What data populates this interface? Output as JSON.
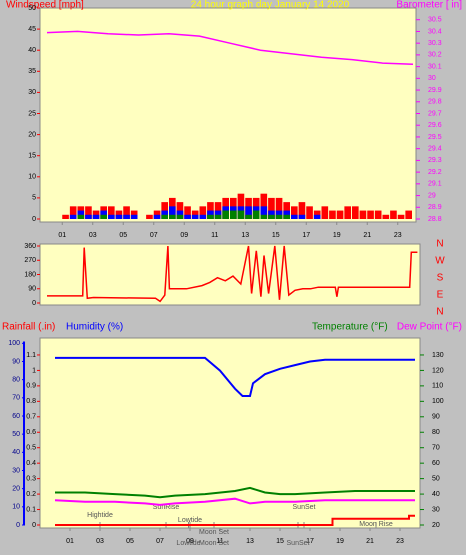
{
  "chart_data": [
    {
      "type": "bar",
      "title": "24 hour graph day   January 14 2020",
      "ylabel": "Windspeed [mph]",
      "y2label": "Barometer [ in]",
      "xlim": [
        0,
        24
      ],
      "xticks": [
        {
          "value": 1,
          "label": "01"
        },
        {
          "value": 3,
          "label": "03"
        },
        {
          "value": 5,
          "label": "05"
        },
        {
          "value": 7,
          "label": "07"
        },
        {
          "value": 9,
          "label": "09"
        },
        11,
        13,
        15,
        17,
        19,
        21,
        23
      ],
      "ylim": [
        0,
        50
      ],
      "yticks": [
        0,
        5,
        10,
        15,
        20,
        25,
        30,
        35,
        40,
        45,
        50
      ],
      "y2lim": [
        28.8,
        30.6
      ],
      "y2ticks": [
        28.8,
        28.9,
        29,
        29.1,
        29.2,
        29.3,
        29.4,
        29.5,
        29.6,
        29.7,
        29.8,
        29.9,
        30,
        30.1,
        30.2,
        30.3,
        30.4,
        30.5
      ],
      "x": [
        0,
        0.5,
        1,
        1.5,
        2,
        2.5,
        3,
        3.5,
        4,
        4.5,
        5,
        5.5,
        6,
        6.5,
        7,
        7.5,
        8,
        8.5,
        9,
        9.5,
        10,
        10.5,
        11,
        11.5,
        12,
        12.5,
        13,
        13.5,
        14,
        14.5,
        15,
        15.5,
        16,
        16.5,
        17,
        17.5,
        18,
        18.5,
        19,
        19.5,
        20,
        20.5,
        21,
        21.5,
        22,
        22.5,
        23,
        23.5
      ],
      "series": [
        {
          "color": "#ff0000",
          "values": [
            0,
            0,
            1,
            3,
            3,
            3,
            2,
            3,
            3,
            2,
            3,
            2,
            0,
            1,
            2,
            4,
            5,
            4,
            3,
            2,
            3,
            4,
            4,
            5,
            5,
            6,
            5,
            5,
            6,
            5,
            5,
            4,
            3,
            4,
            3,
            2,
            3,
            2,
            2,
            3,
            3,
            2,
            2,
            2,
            1,
            2,
            1,
            2
          ]
        },
        {
          "color": "#0000ff",
          "values": [
            0,
            0,
            0,
            1,
            2,
            1,
            1,
            2,
            1,
            1,
            1,
            1,
            0,
            0,
            1,
            2,
            3,
            2,
            1,
            1,
            1,
            2,
            2,
            3,
            3,
            3,
            3,
            3,
            3,
            2,
            2,
            2,
            1,
            1,
            0,
            1,
            0,
            0,
            0,
            0,
            0,
            0,
            0,
            0,
            0,
            0,
            0,
            0
          ]
        },
        {
          "color": "#008000",
          "values": [
            0,
            0,
            0,
            0,
            1,
            0,
            0,
            1,
            0,
            0,
            0,
            0,
            0,
            0,
            0,
            1,
            1,
            1,
            0,
            0,
            0,
            1,
            1,
            2,
            2,
            2,
            1,
            2,
            1,
            1,
            1,
            1,
            0,
            0,
            0,
            0,
            0,
            0,
            0,
            0,
            0,
            0,
            0,
            0,
            0,
            0,
            0,
            0
          ]
        }
      ],
      "line": {
        "color": "#ff00ff",
        "axis": "y2",
        "x": [
          0,
          2,
          4,
          6,
          8,
          10,
          12,
          14,
          16,
          18,
          20,
          22,
          24
        ],
        "values": [
          30.39,
          30.4,
          30.38,
          30.37,
          30.38,
          30.36,
          30.3,
          30.24,
          30.21,
          30.18,
          30.16,
          30.13,
          30.12
        ]
      }
    },
    {
      "type": "line",
      "xlim": [
        0,
        24
      ],
      "ylim": [
        0,
        360
      ],
      "yticks": [
        0,
        90,
        180,
        270,
        360
      ],
      "compass": [
        "N",
        "W",
        "S",
        "E",
        "N"
      ],
      "series": [
        {
          "color": "#ff0000",
          "x": [
            0,
            2.3,
            2.4,
            2.6,
            3,
            7,
            7.3,
            7.6,
            7.8,
            7.9,
            9,
            10,
            10.5,
            11,
            11.5,
            12,
            12.5,
            13,
            13.2,
            13.5,
            13.8,
            14,
            14.3,
            14.7,
            15,
            15.3,
            15.6,
            16,
            16.5,
            17,
            17.5,
            18,
            18.6,
            18.7,
            18.8,
            20,
            23.4,
            23.5,
            23.9
          ],
          "values": [
            45,
            45,
            350,
            30,
            35,
            30,
            10,
            50,
            360,
            90,
            90,
            110,
            130,
            160,
            140,
            170,
            120,
            360,
            60,
            330,
            40,
            300,
            60,
            360,
            20,
            360,
            50,
            80,
            90,
            90,
            100,
            100,
            100,
            40,
            100,
            100,
            100,
            320,
            320
          ]
        }
      ]
    },
    {
      "type": "line",
      "ylabel": "Rainfall (.in)",
      "hlabel": "Humidity (%)",
      "y2label": "Temperature (°F)",
      "y3label": "Dew Point (°F)",
      "xlim": [
        0,
        24
      ],
      "xticks": [
        {
          "value": 1,
          "label": "01"
        },
        {
          "value": 3,
          "label": "03"
        },
        {
          "value": 5,
          "label": "05"
        },
        {
          "value": 7,
          "label": "07"
        },
        {
          "value": 9,
          "label": "09"
        },
        11,
        13,
        15,
        17,
        19,
        21,
        23
      ],
      "ylim": [
        0,
        1.2
      ],
      "yticks": [
        0,
        0.1,
        0.2,
        0.3,
        0.4,
        0.5,
        0.6,
        0.7,
        0.8,
        0.9,
        1,
        1.1
      ],
      "hlim": [
        0,
        101
      ],
      "hticks": [
        0,
        10,
        20,
        30,
        40,
        50,
        60,
        70,
        80,
        90,
        100
      ],
      "y2lim": [
        20,
        140
      ],
      "y2ticks": [
        20,
        30,
        40,
        50,
        60,
        70,
        80,
        90,
        100,
        110,
        120,
        130
      ],
      "series": [
        {
          "name": "Humidity (%)",
          "color": "#0000ff",
          "axis": "h",
          "x": [
            0,
            2,
            4,
            6,
            8,
            10,
            11,
            12,
            12.5,
            13,
            13.2,
            14,
            15,
            16,
            17,
            18,
            20,
            24
          ],
          "values": [
            92,
            92,
            92,
            92,
            92,
            92,
            85,
            75,
            71,
            71,
            78,
            83,
            86,
            88,
            90,
            91,
            91,
            91
          ]
        },
        {
          "name": "Temperature (°F)",
          "color": "#008000",
          "axis": "y2",
          "x": [
            0,
            2,
            4,
            6,
            7,
            8,
            10,
            12,
            13,
            14,
            15,
            16,
            18,
            20,
            22,
            24
          ],
          "values": [
            41,
            41,
            40,
            39,
            38,
            39,
            40,
            42,
            44,
            41,
            40,
            40,
            41,
            42,
            42,
            42
          ]
        },
        {
          "name": "Dew Point (°F)",
          "color": "#ff00ff",
          "axis": "y2",
          "x": [
            0,
            2,
            4,
            6,
            7,
            8,
            10,
            12,
            13,
            14,
            16,
            18,
            20,
            22,
            24
          ],
          "values": [
            36,
            35,
            35,
            34,
            33,
            34,
            35,
            37,
            34,
            35,
            35,
            36,
            36,
            36,
            36
          ]
        },
        {
          "name": "Rainfall (.in)",
          "color": "#ff0000",
          "axis": "y",
          "x": [
            0,
            18.5,
            18.5,
            23.6,
            23.6,
            24
          ],
          "values": [
            0,
            0,
            0.04,
            0.04,
            0.06,
            0.06
          ]
        }
      ],
      "annotations": [
        {
          "text": "Hightide",
          "x": 3
        },
        {
          "text": "SunRise",
          "x": 7.4
        },
        {
          "text": "Lowtide",
          "x": 9
        },
        {
          "text": "Moon Set",
          "x": 10.6
        },
        {
          "text": "SunSet",
          "x": 16.6
        },
        {
          "text": "Moon Rise",
          "x": 21.4
        },
        {
          "text": "Lowtide",
          "x": 8.9
        },
        {
          "text": "Moon Set",
          "x": 10.6
        },
        {
          "text": "SunSet",
          "x": 16.2
        }
      ]
    }
  ]
}
